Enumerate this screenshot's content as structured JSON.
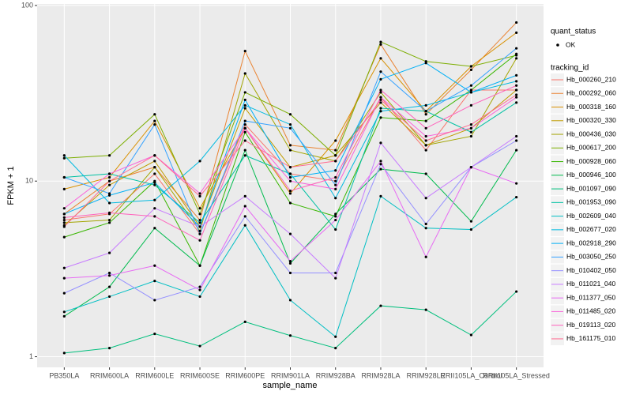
{
  "chart_data": {
    "type": "line",
    "x_label": "sample_name",
    "y_label": "FPKM + 1",
    "categories": [
      "PB350LA",
      "RRIM600LA",
      "RRIM600LE",
      "RRIM600SE",
      "RRIM600PE",
      "RRIM901LA",
      "RRIM928BA",
      "RRIM928LA",
      "RRIM928LE",
      "RRII105LA_Control",
      "RRII105LA_Stressed"
    ],
    "ylim": [
      0.87,
      102
    ],
    "yticks": [
      1,
      10,
      100
    ],
    "log_y": true,
    "grid": true,
    "legend_position": "right",
    "point_legend": {
      "title": "quant_status",
      "labels": [
        "OK"
      ],
      "color": "#000000"
    },
    "legend_title": "tracking_id",
    "series": [
      {
        "name": "Hb_000260_210",
        "color": "#F8766D",
        "values": [
          6.0,
          6.5,
          11,
          5.0,
          21,
          11,
          10,
          30,
          15,
          33,
          33
        ]
      },
      {
        "name": "Hb_000292_060",
        "color": "#EA8331",
        "values": [
          6.5,
          10,
          12,
          6.0,
          55,
          16,
          15,
          60,
          24,
          43,
          80
        ]
      },
      {
        "name": "Hb_000318_160",
        "color": "#D89000",
        "values": [
          9.0,
          10.5,
          22,
          7.0,
          20,
          8.5,
          17,
          50,
          25,
          45,
          70
        ]
      },
      {
        "name": "Hb_000320_330",
        "color": "#C09B00",
        "values": [
          5.6,
          9.5,
          13,
          5.5,
          26,
          12,
          14,
          28,
          16,
          20,
          33
        ]
      },
      {
        "name": "Hb_000436_030",
        "color": "#A3A500",
        "values": [
          5.8,
          6.0,
          12,
          5.2,
          41,
          15,
          13,
          32,
          16,
          18,
          50
        ]
      },
      {
        "name": "Hb_000617_200",
        "color": "#7CAE00",
        "values": [
          13.5,
          14,
          24,
          6.5,
          32,
          24,
          14,
          62,
          48,
          45,
          52
        ]
      },
      {
        "name": "Hb_000928_060",
        "color": "#39B600",
        "values": [
          4.8,
          5.8,
          10,
          3.3,
          19,
          7.5,
          6.3,
          23,
          22,
          33,
          53
        ]
      },
      {
        "name": "Hb_000946_100",
        "color": "#00BB4E",
        "values": [
          1.7,
          2.5,
          5.4,
          3.3,
          15,
          3.4,
          6.5,
          11.7,
          11,
          5.9,
          15
        ]
      },
      {
        "name": "Hb_001097_090",
        "color": "#00BF7D",
        "values": [
          1.05,
          1.12,
          1.35,
          1.15,
          1.58,
          1.32,
          1.12,
          1.95,
          1.85,
          1.33,
          2.35
        ]
      },
      {
        "name": "Hb_001953_090",
        "color": "#00C1A3",
        "values": [
          10.5,
          11,
          9.5,
          5.8,
          14,
          11,
          5.3,
          26,
          25,
          19,
          28
        ]
      },
      {
        "name": "Hb_002609_040",
        "color": "#00BFC4",
        "values": [
          1.8,
          2.2,
          2.7,
          2.2,
          5.6,
          2.1,
          1.3,
          8.2,
          5.4,
          5.3,
          8.1
        ]
      },
      {
        "name": "Hb_002677_020",
        "color": "#00BAE0",
        "values": [
          14,
          7.5,
          7.8,
          13,
          27,
          21,
          8.0,
          25,
          27,
          32,
          37
        ]
      },
      {
        "name": "Hb_002918_290",
        "color": "#00B0F6",
        "values": [
          6.5,
          8.3,
          9.8,
          5.5,
          29,
          10.5,
          11.5,
          38,
          47,
          32,
          40
        ]
      },
      {
        "name": "Hb_003050_250",
        "color": "#35A2FF",
        "values": [
          10.5,
          8.5,
          21,
          5.0,
          22,
          20,
          9.5,
          42,
          25,
          35,
          57
        ]
      },
      {
        "name": "Hb_010402_050",
        "color": "#9590FF",
        "values": [
          2.3,
          3.0,
          2.1,
          2.5,
          6.3,
          3.0,
          3.0,
          12.5,
          5.7,
          12,
          17
        ]
      },
      {
        "name": "Hb_011021_040",
        "color": "#C77CFF",
        "values": [
          3.2,
          3.9,
          7.0,
          5.5,
          8.2,
          5.0,
          2.8,
          16.5,
          8.0,
          12,
          18
        ]
      },
      {
        "name": "Hb_011377_050",
        "color": "#E76BF3",
        "values": [
          2.8,
          2.9,
          3.3,
          2.4,
          7.2,
          3.5,
          6.0,
          13,
          3.7,
          12,
          9.7
        ]
      },
      {
        "name": "Hb_011485_020",
        "color": "#FA62DB",
        "values": [
          7.0,
          11,
          14,
          8.5,
          20,
          10,
          9.0,
          30,
          18,
          20,
          30
        ]
      },
      {
        "name": "Hb_019113_020",
        "color": "#FF62BC",
        "values": [
          6.2,
          6.6,
          6.3,
          4.6,
          20,
          8.8,
          10.5,
          33,
          20,
          27,
          35
        ]
      },
      {
        "name": "Hb_161175_010",
        "color": "#FF6C91",
        "values": [
          5.5,
          10,
          14,
          8.2,
          17,
          12,
          13,
          29,
          17,
          21,
          31
        ]
      }
    ]
  }
}
